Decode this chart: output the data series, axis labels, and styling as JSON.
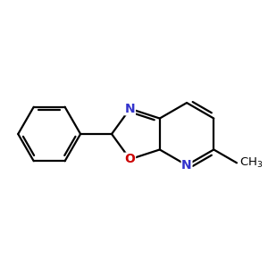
{
  "background_color": "#ffffff",
  "bond_color": "#000000",
  "bond_width": 1.6,
  "atom_colors": {
    "N": "#3333cc",
    "O": "#cc0000",
    "C": "#000000"
  },
  "font_size_atoms": 10,
  "font_size_methyl": 9.5
}
